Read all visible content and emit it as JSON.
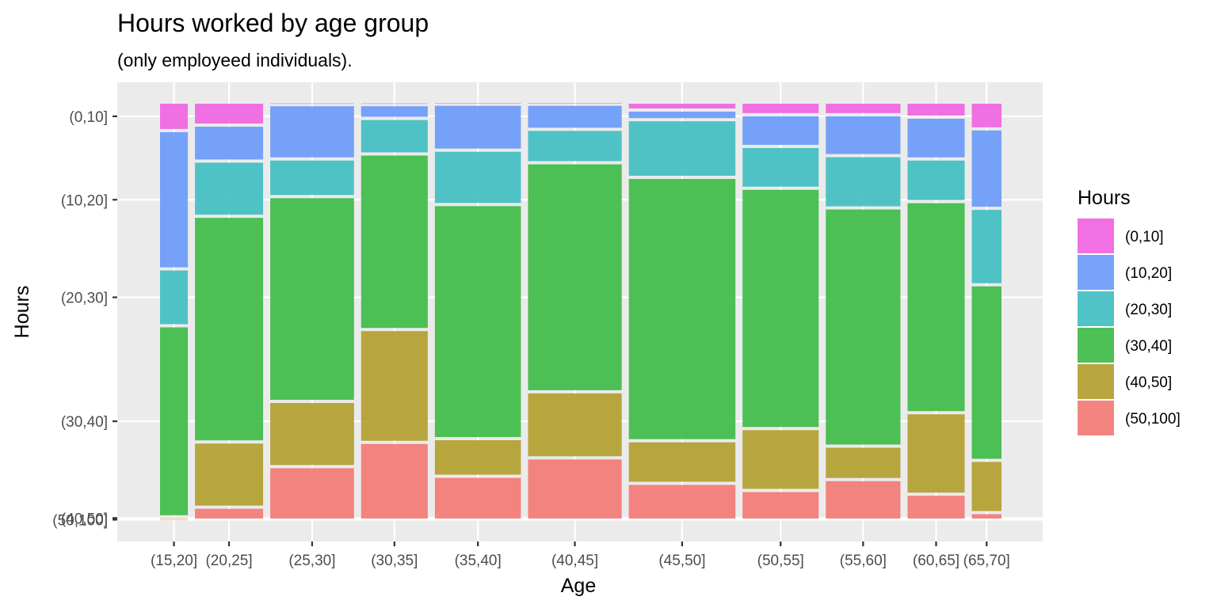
{
  "chart_data": {
    "type": "mosaic",
    "title": "Hours worked by age group",
    "subtitle": "(only employeed individuals).",
    "xlabel": "Age",
    "ylabel": "Hours",
    "legend_title": "Hours",
    "legend_position": "right",
    "grid": true,
    "categories": [
      "(15,20]",
      "(20,25]",
      "(25,30]",
      "(30,35]",
      "(35,40]",
      "(40,45]",
      "(45,50]",
      "(50,55]",
      "(55,60]",
      "(60,65]",
      "(65,70]"
    ],
    "category_widths": [
      0.073,
      0.179,
      0.22,
      0.175,
      0.226,
      0.246,
      0.28,
      0.2,
      0.196,
      0.15,
      0.078
    ],
    "y_ticks": [
      "(0,10]",
      "(10,20]",
      "(20,30]",
      "(30,40]",
      "(40,50]",
      "(50,100]"
    ],
    "series": [
      {
        "name": "(0,10]",
        "color": "#F067E1",
        "values": [
          0.068,
          0.055,
          0.006,
          0.006,
          0.005,
          0.005,
          0.019,
          0.03,
          0.03,
          0.036,
          0.064
        ]
      },
      {
        "name": "(10,20]",
        "color": "#6F9CF9",
        "values": [
          0.331,
          0.086,
          0.13,
          0.033,
          0.11,
          0.06,
          0.023,
          0.076,
          0.098,
          0.1,
          0.19
        ]
      },
      {
        "name": "(20,30]",
        "color": "#45BFC4",
        "values": [
          0.136,
          0.132,
          0.09,
          0.085,
          0.13,
          0.08,
          0.138,
          0.1,
          0.125,
          0.102,
          0.183
        ]
      },
      {
        "name": "(30,40]",
        "color": "#42BC4B",
        "values": [
          0.457,
          0.54,
          0.49,
          0.42,
          0.56,
          0.548,
          0.63,
          0.575,
          0.57,
          0.505,
          0.42
        ]
      },
      {
        "name": "(40,50]",
        "color": "#B4A033",
        "values": [
          0.006,
          0.156,
          0.156,
          0.27,
          0.09,
          0.158,
          0.102,
          0.148,
          0.08,
          0.195,
          0.125
        ]
      },
      {
        "name": "(50,100]",
        "color": "#F37C78",
        "values": [
          0.002,
          0.031,
          0.128,
          0.186,
          0.105,
          0.149,
          0.088,
          0.071,
          0.097,
          0.062,
          0.018
        ]
      }
    ]
  }
}
